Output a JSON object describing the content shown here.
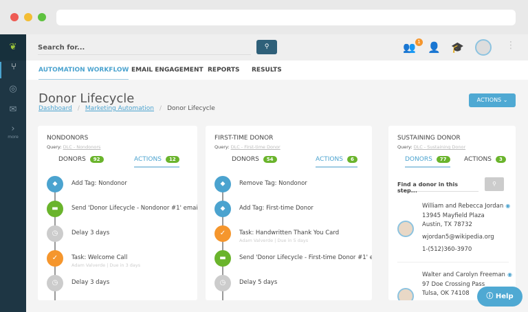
{
  "search": {
    "placeholder": "Search for..."
  },
  "notifications_count": "1",
  "tabs": [
    "AUTOMATION WORKFLOW",
    "EMAIL ENGAGEMENT",
    "REPORTS",
    "RESULTS"
  ],
  "sidebar": {
    "more": "more"
  },
  "page": {
    "title": "Donor Lifecycle",
    "breadcrumb": [
      "Dashboard",
      "Marketing Automation",
      "Donor Lifecycle"
    ],
    "actions": "ACTIONS"
  },
  "cards": [
    {
      "title": "NONDONORS",
      "query_label": "Query:",
      "query": "DLC - Nondonors",
      "donors_label": "DONORS",
      "donors": "92",
      "actions_label": "ACTIONS",
      "actions": "12",
      "steps": [
        {
          "type": "tag",
          "text": "Add Tag: Nondonor"
        },
        {
          "type": "email",
          "text": "Send 'Donor Lifecycle - Nondonor #1' email"
        },
        {
          "type": "delay",
          "text": "Delay 3 days"
        },
        {
          "type": "task",
          "text": "Task: Welcome Call",
          "sub": "Adam Valverde | Due in 3 days"
        },
        {
          "type": "delay",
          "text": "Delay 3 days"
        }
      ]
    },
    {
      "title": "FIRST-TIME DONOR",
      "query_label": "Query:",
      "query": "DLC - First-time Donor",
      "donors_label": "DONORS",
      "donors": "54",
      "actions_label": "ACTIONS",
      "actions": "6",
      "steps": [
        {
          "type": "tag",
          "text": "Remove Tag: Nondonor"
        },
        {
          "type": "tag",
          "text": "Add Tag: First-time Donor"
        },
        {
          "type": "task",
          "text": "Task: Handwritten Thank You Card",
          "sub": "Adam Valverde | Due in 5 days"
        },
        {
          "type": "email",
          "text": "Send 'Donor Lifecycle - First-time Donor #1' email"
        },
        {
          "type": "delay",
          "text": "Delay 5 days"
        }
      ]
    },
    {
      "title": "SUSTAINING DONOR",
      "query_label": "Query:",
      "query": "DLC - Sustaining Donor",
      "donors_label": "DONORS",
      "donors": "77",
      "actions_label": "ACTIONS",
      "actions": "3",
      "find_placeholder": "Find a donor in this step...",
      "donor_list": [
        {
          "name": "William and Rebecca Jordan",
          "address1": "13945 Mayfield Plaza",
          "address2": "Austin, TX 78732",
          "email": "wjordan5@wikipedia.org",
          "phone": "1-(512)360-3970"
        },
        {
          "name": "Walter and Carolyn Freeman",
          "address1": "97 Doe Crossing Pass",
          "address2": "Tulsa, OK 74108"
        }
      ]
    }
  ],
  "help": "Help",
  "colors": {
    "tag": "#4ba3cf",
    "email": "#6ab42c",
    "delay": "#cccccc",
    "task": "#f5962d",
    "sidebar": "#1e3644",
    "accent": "#4fa9d3"
  }
}
